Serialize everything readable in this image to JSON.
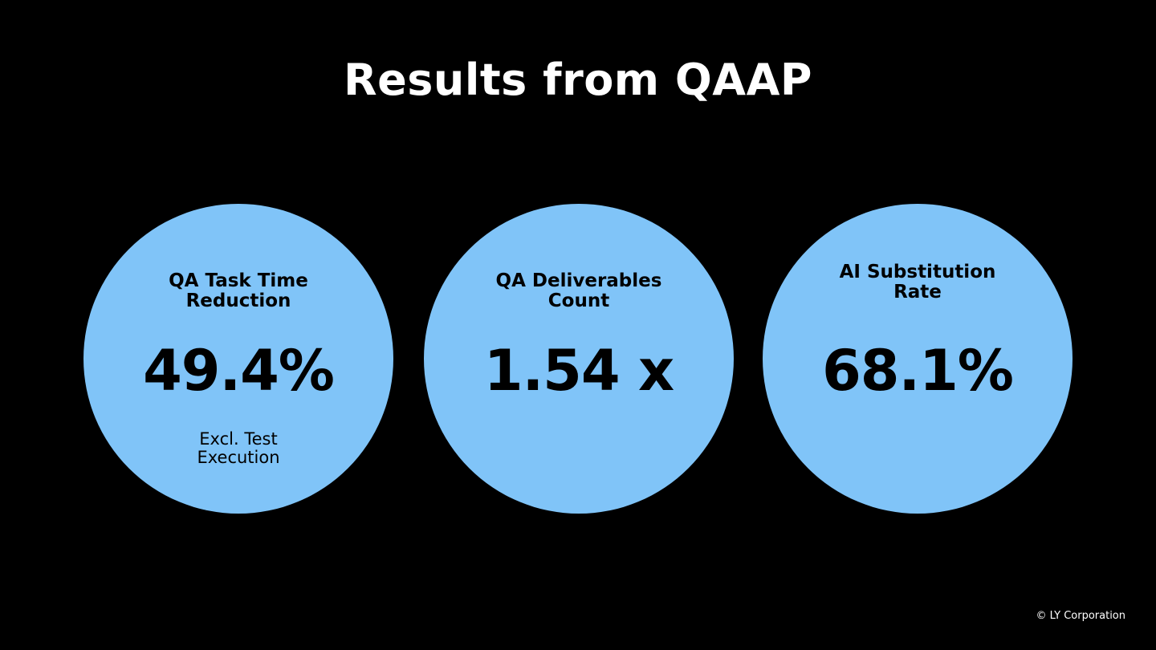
{
  "header": {
    "title": "Results from QAAP"
  },
  "metrics": [
    {
      "label": [
        "QA Task Time",
        "Reduction"
      ],
      "value": "49.4%",
      "note": [
        "Excl. Test",
        "Execution"
      ]
    },
    {
      "label": [
        "QA Deliverables",
        "Count"
      ],
      "value": "1.54 x"
    },
    {
      "label": [
        "AI Substitution",
        "Rate"
      ],
      "value": "68.1%"
    }
  ],
  "footer": {
    "copyright": "© LY Corporation"
  }
}
